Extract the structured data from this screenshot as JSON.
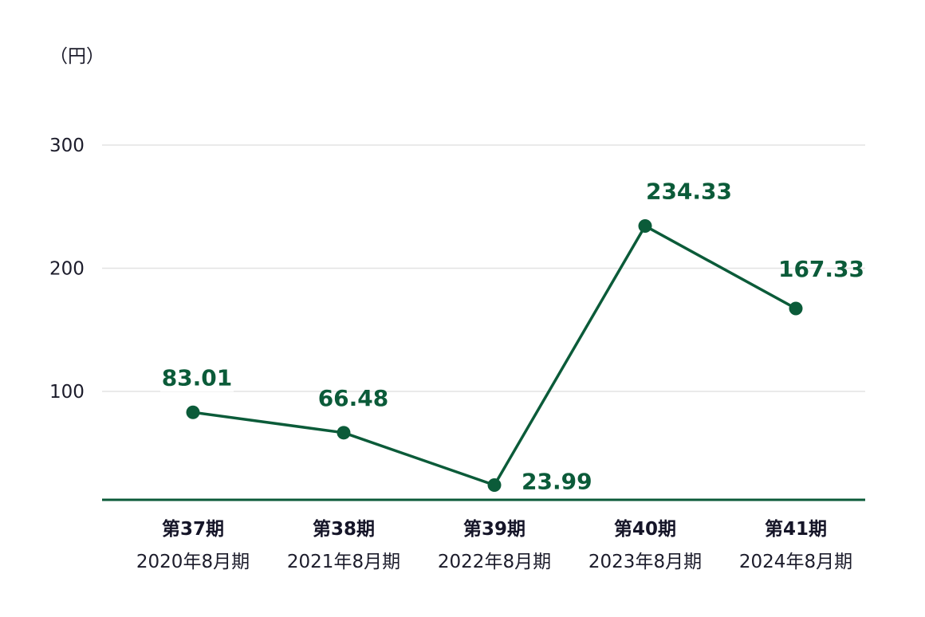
{
  "chart_data": {
    "type": "line",
    "unit_label": "（円）",
    "ylim": [
      12,
      300
    ],
    "y_ticks": [
      100,
      200,
      300
    ],
    "y_tick_labels": [
      "100",
      "200",
      "300"
    ],
    "grid": true,
    "categories": [
      {
        "period": "第37期",
        "fiscal": "2020年8月期"
      },
      {
        "period": "第38期",
        "fiscal": "2021年8月期"
      },
      {
        "period": "第39期",
        "fiscal": "2022年8月期"
      },
      {
        "period": "第40期",
        "fiscal": "2023年8月期"
      },
      {
        "period": "第41期",
        "fiscal": "2024年8月期"
      }
    ],
    "values": [
      83.01,
      66.48,
      23.99,
      234.33,
      167.33
    ],
    "value_labels": [
      "83.01",
      "66.48",
      "23.99",
      "234.33",
      "167.33"
    ],
    "colors": {
      "line": "#0b5b39",
      "grid": "#e3e3e3",
      "text": "#1c1c2b"
    }
  }
}
